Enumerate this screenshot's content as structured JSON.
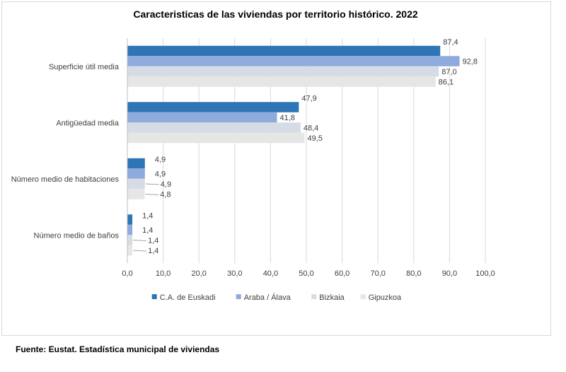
{
  "chart_data": {
    "type": "bar",
    "orientation": "horizontal",
    "title": "Caracteristicas de las viviendas por territorio histórico. 2022",
    "categories": [
      "Superficie útil media",
      "Antigüedad media",
      "Número medio de habitaciones",
      "Número medio de baños"
    ],
    "series": [
      {
        "name": "C.A. de Euskadi",
        "color": "#2e75b6",
        "values": [
          87.4,
          47.9,
          4.9,
          1.4
        ],
        "labels": [
          "87,4",
          "47,9",
          "4,9",
          "1,4"
        ]
      },
      {
        "name": "Araba / Álava",
        "color": "#8faadc",
        "values": [
          92.8,
          41.8,
          4.9,
          1.4
        ],
        "labels": [
          "92,8",
          "41,8",
          "4,9",
          "1,4"
        ]
      },
      {
        "name": "Bizkaia",
        "color": "#d6dce5",
        "values": [
          87.0,
          48.4,
          4.9,
          1.4
        ],
        "labels": [
          "87,0",
          "48,4",
          "4,9",
          "1,4"
        ]
      },
      {
        "name": "Gipuzkoa",
        "color": "#e7e6e6",
        "values": [
          86.1,
          49.5,
          4.8,
          1.4
        ],
        "labels": [
          "86,1",
          "49,5",
          "4,8",
          "1,4"
        ]
      }
    ],
    "xlim": [
      0,
      100
    ],
    "xticks": [
      0,
      10,
      20,
      30,
      40,
      50,
      60,
      70,
      80,
      90,
      100
    ],
    "xtick_labels": [
      "0,0",
      "10,0",
      "20,0",
      "30,0",
      "40,0",
      "50,0",
      "60,0",
      "70,0",
      "80,0",
      "90,0",
      "100,0"
    ],
    "legend_position": "bottom",
    "grid": true
  },
  "source_text": "Fuente: Eustat. Estadística municipal de viviendas"
}
